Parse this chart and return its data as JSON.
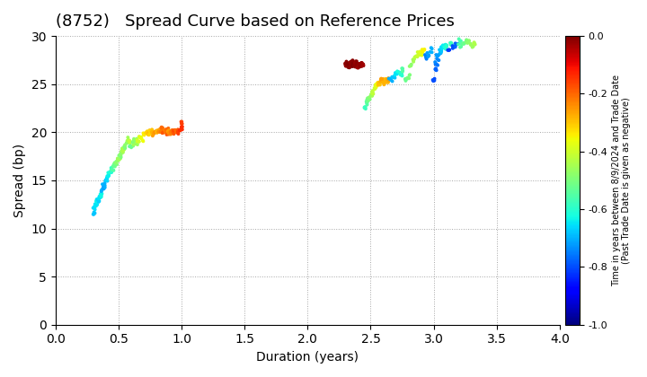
{
  "title": "(8752)   Spread Curve based on Reference Prices",
  "xlabel": "Duration (years)",
  "ylabel": "Spread (bp)",
  "colorbar_label": "Time in years between 8/9/2024 and Trade Date\n(Past Trade Date is given as negative)",
  "xlim": [
    0.0,
    4.0
  ],
  "ylim": [
    0,
    30
  ],
  "xticks": [
    0.0,
    0.5,
    1.0,
    1.5,
    2.0,
    2.5,
    3.0,
    3.5,
    4.0
  ],
  "yticks": [
    0,
    5,
    10,
    15,
    20,
    25,
    30
  ],
  "cmap_min": -1.0,
  "cmap_max": 0.0,
  "cmap": "jet",
  "point_size": 8,
  "bg_color": "white",
  "grid_color": "gray",
  "grid_style": ":",
  "title_fontsize": 13,
  "axis_fontsize": 10,
  "colorbar_fontsize": 7
}
